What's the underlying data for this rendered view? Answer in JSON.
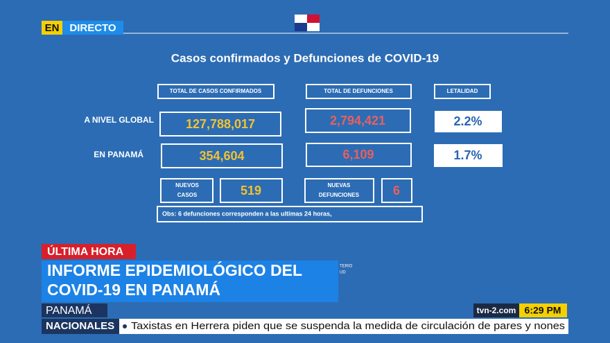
{
  "live_badge": {
    "en": "EN",
    "directo": "DIRECTO"
  },
  "slide": {
    "title": "Casos confirmados y Defunciones de COVID-19",
    "headers": [
      "TOTAL DE CASOS CONFIRMADOS",
      "TOTAL DE DEFUNCIONES",
      "LETALIDAD"
    ],
    "rows": [
      {
        "label": "A NIVEL GLOBAL",
        "cases": "127,788,017",
        "deaths": "2,794,421",
        "lethality": "2.2%"
      },
      {
        "label": "EN PANAMÁ",
        "cases": "354,604",
        "deaths": "6,109",
        "lethality": "1.7%"
      }
    ],
    "new_cases": {
      "label": [
        "NUEVOS",
        "CASOS"
      ],
      "value": "519"
    },
    "new_deaths": {
      "label": [
        "NUEVAS",
        "DEFUNCIONES"
      ],
      "value": "6"
    },
    "note": "Obs: 6 defunciones corresponden a las ultimas 24 horas,",
    "logo_fragment": [
      "TERIO",
      "UD"
    ]
  },
  "lower_third": {
    "tag": "ÚLTIMA HORA",
    "headline": [
      "INFORME EPIDEMIOLÓGICO DEL",
      "COVID-19 EN PANAMÁ"
    ],
    "location": "PANAMÁ",
    "channel": "tvn-2.com",
    "time": "6:29 PM",
    "ticker_section": "NACIONALES",
    "ticker_text": "Taxistas en Herrera piden que se suspenda la medida de circulación de pares y nones"
  }
}
